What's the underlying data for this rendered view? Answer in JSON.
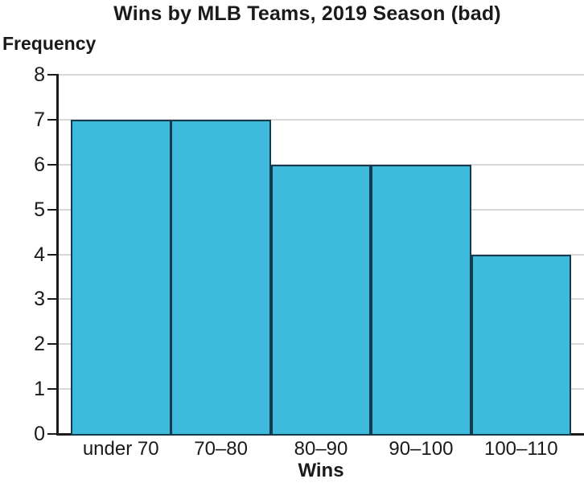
{
  "chart_data": {
    "type": "bar",
    "subtype": "histogram",
    "title": "Wins by MLB Teams, 2019 Season (bad)",
    "xlabel": "Wins",
    "ylabel": "Frequency",
    "categories": [
      "under 70",
      "70–80",
      "80–90",
      "90–100",
      "100–110"
    ],
    "values": [
      7,
      7,
      6,
      6,
      4
    ],
    "ylim": [
      0,
      8
    ],
    "ytick_step": 1,
    "yticks": [
      0,
      1,
      2,
      3,
      4,
      5,
      6,
      7,
      8
    ],
    "grid": true,
    "legend": "none",
    "colors": {
      "bar_fill": "#3DBADC",
      "bar_border": "#16394B",
      "gridline": "#D8D8D8",
      "axis": "#1A1A1A",
      "text": "#1A1A1A"
    }
  }
}
